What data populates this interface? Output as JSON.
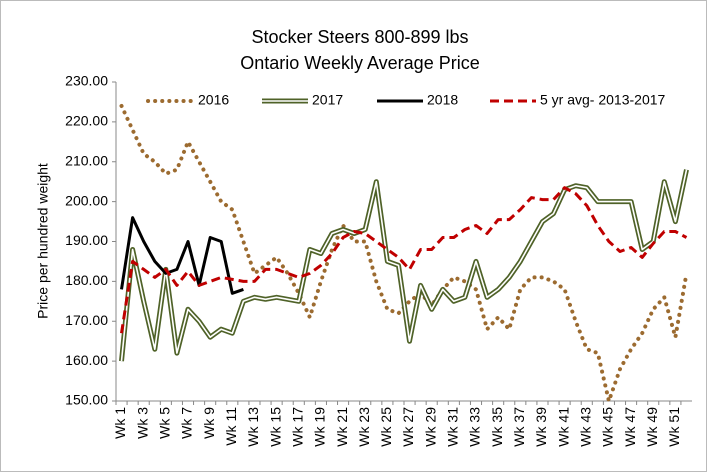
{
  "chart_data": {
    "type": "line",
    "title": "Stocker Steers 800-899 lbs",
    "subtitle": "Ontario Weekly Average Price",
    "y_label": "Price per hundred weight",
    "categories": [
      "Wk 1",
      null,
      "Wk 3",
      null,
      "Wk 5",
      null,
      "Wk 7",
      null,
      "Wk 9",
      null,
      "Wk 11",
      null,
      "Wk 13",
      null,
      "Wk 15",
      null,
      "Wk 17",
      null,
      "Wk 19",
      null,
      "Wk 21",
      null,
      "Wk 23",
      null,
      "Wk 25",
      null,
      "Wk 27",
      null,
      "Wk 29",
      null,
      "Wk 31",
      null,
      "Wk 33",
      null,
      "Wk 35",
      null,
      "Wk 37",
      null,
      "Wk 39",
      null,
      "Wk 41",
      null,
      "Wk 43",
      null,
      "Wk 45",
      null,
      "Wk 47",
      null,
      "Wk 49",
      null,
      "Wk 51",
      null
    ],
    "series": [
      {
        "name": "2016",
        "color": "#9c6b30",
        "line_style": "dotted",
        "values": [
          224,
          218,
          212,
          210,
          207,
          208,
          215,
          210,
          205,
          200,
          198,
          190,
          182,
          184,
          186,
          182,
          177,
          171,
          180,
          188,
          194,
          190,
          190,
          180,
          173,
          172,
          175,
          177,
          174,
          178,
          181,
          180,
          178,
          168,
          171,
          168,
          178,
          181,
          181,
          180,
          178,
          170,
          163,
          162,
          150,
          158,
          163,
          167,
          173,
          176,
          166,
          182
        ]
      },
      {
        "name": "2017",
        "color": "#4f6228",
        "line_style": "double",
        "values": [
          160,
          188,
          175,
          163,
          183,
          162,
          173,
          170,
          166,
          168,
          167,
          175,
          176,
          175.5,
          176,
          175.5,
          175,
          188,
          187,
          192,
          193,
          192,
          193,
          205,
          185,
          184,
          165,
          179,
          173,
          178,
          175,
          176,
          185,
          176,
          178,
          181,
          185,
          190,
          195,
          197,
          203,
          204,
          203.5,
          200,
          200,
          200,
          200,
          188,
          190,
          205,
          195,
          208
        ]
      },
      {
        "name": "2018",
        "color": "#000000",
        "line_style": "solid",
        "values": [
          178,
          196,
          190,
          185,
          182,
          183,
          190,
          179,
          191,
          190,
          177,
          178,
          null,
          null,
          null,
          null,
          null,
          null,
          null,
          null,
          null,
          null,
          null,
          null,
          null,
          null,
          null,
          null,
          null,
          null,
          null,
          null,
          null,
          null,
          null,
          null,
          null,
          null,
          null,
          null,
          null,
          null,
          null,
          null,
          null,
          null,
          null,
          null,
          null,
          null,
          null,
          null
        ]
      },
      {
        "name": "5 yr avg- 2013-2017",
        "color": "#c00000",
        "line_style": "dashed",
        "values": [
          167,
          185,
          183,
          181,
          183,
          179,
          182.5,
          179,
          180,
          181,
          180.5,
          180,
          180,
          183,
          183,
          182,
          181,
          182,
          184,
          187,
          191,
          192.5,
          192,
          190,
          188,
          186,
          183,
          188,
          188,
          191,
          191,
          193,
          194,
          192,
          195.5,
          195.5,
          198,
          201,
          200.5,
          200.5,
          203.5,
          202,
          199,
          194,
          190,
          187.5,
          188.5,
          186,
          189.5,
          192.5,
          192.5,
          191
        ]
      }
    ],
    "ylim": [
      150,
      230
    ],
    "yticks": [
      {
        "value": 150,
        "label": "150.00"
      },
      {
        "value": 160,
        "label": "160.00"
      },
      {
        "value": 170,
        "label": "170.00"
      },
      {
        "value": 180,
        "label": "180.00"
      },
      {
        "value": 190,
        "label": "190.00"
      },
      {
        "value": 200,
        "label": "200.00"
      },
      {
        "value": 210,
        "label": "210.00"
      },
      {
        "value": 220,
        "label": "220.00"
      },
      {
        "value": 230,
        "label": "230.00"
      }
    ],
    "legend": "top"
  }
}
